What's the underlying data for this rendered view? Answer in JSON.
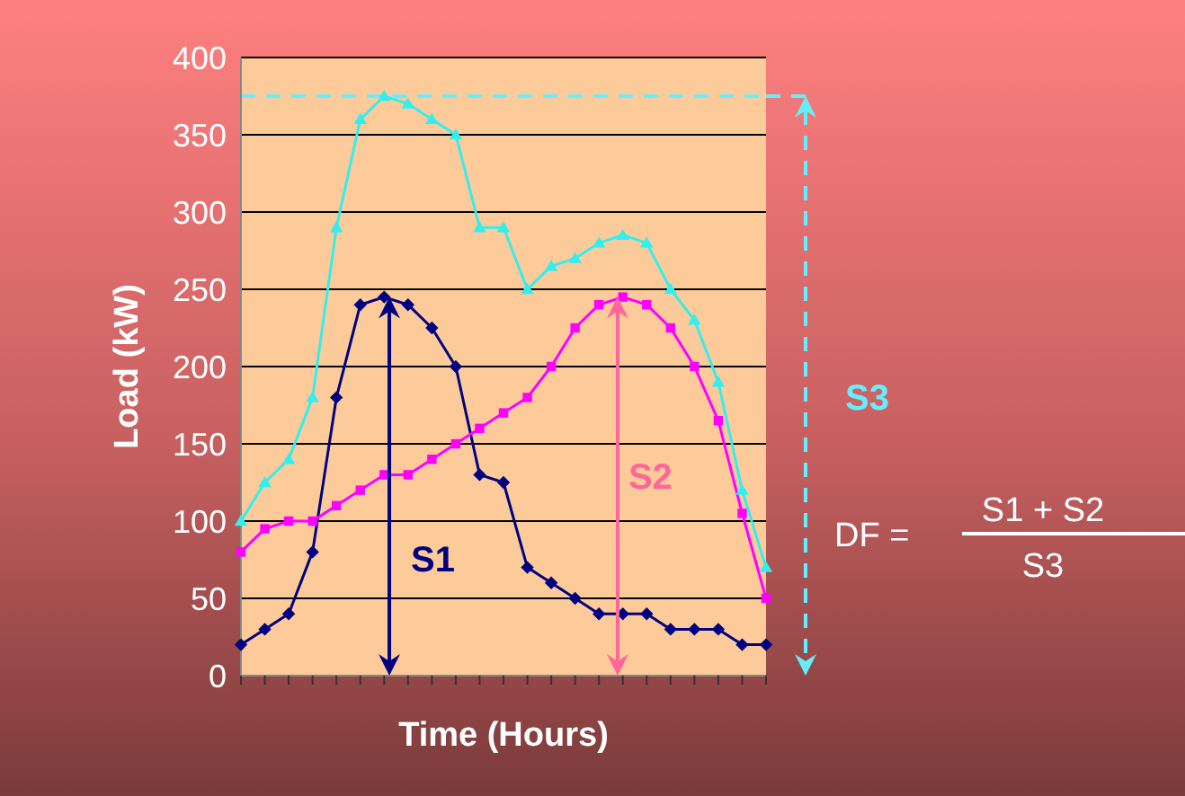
{
  "chart_data": {
    "type": "line",
    "xlabel": "Time (Hours)",
    "ylabel": "Load (kW)",
    "categories": [
      null,
      null,
      null,
      null,
      null,
      null,
      null,
      null,
      null,
      null,
      null,
      null,
      null,
      null,
      null,
      null,
      null,
      null,
      null,
      null,
      null,
      null,
      null
    ],
    "series": [
      {
        "color": "#000080",
        "marker": "diamond",
        "values": [
          20,
          30,
          40,
          80,
          180,
          240,
          245,
          240,
          225,
          200,
          130,
          125,
          70,
          60,
          50,
          40,
          40,
          40,
          30,
          30,
          30,
          20,
          20
        ]
      },
      {
        "color": "#ff00ff",
        "marker": "square",
        "values": [
          80,
          95,
          100,
          100,
          110,
          120,
          130,
          130,
          140,
          150,
          160,
          170,
          180,
          200,
          225,
          240,
          245,
          240,
          225,
          200,
          165,
          105,
          50
        ]
      },
      {
        "color": "#33eeee",
        "marker": "triangle",
        "values": [
          100,
          125,
          140,
          180,
          290,
          360,
          375,
          370,
          360,
          350,
          290,
          290,
          250,
          265,
          270,
          280,
          285,
          280,
          250,
          230,
          190,
          120,
          70
        ]
      }
    ],
    "ylim": [
      0,
      400
    ],
    "yticks": [
      0,
      50,
      100,
      150,
      200,
      250,
      300,
      350,
      400
    ],
    "grid": "y",
    "ref_lines": [
      {
        "axis": "y",
        "value": 375,
        "label": "S3",
        "color": "#66eeff",
        "line_style": "dashed"
      }
    ],
    "annotations": [
      "S1",
      "S2",
      "DF =",
      "S1 + S2",
      "S3"
    ]
  }
}
